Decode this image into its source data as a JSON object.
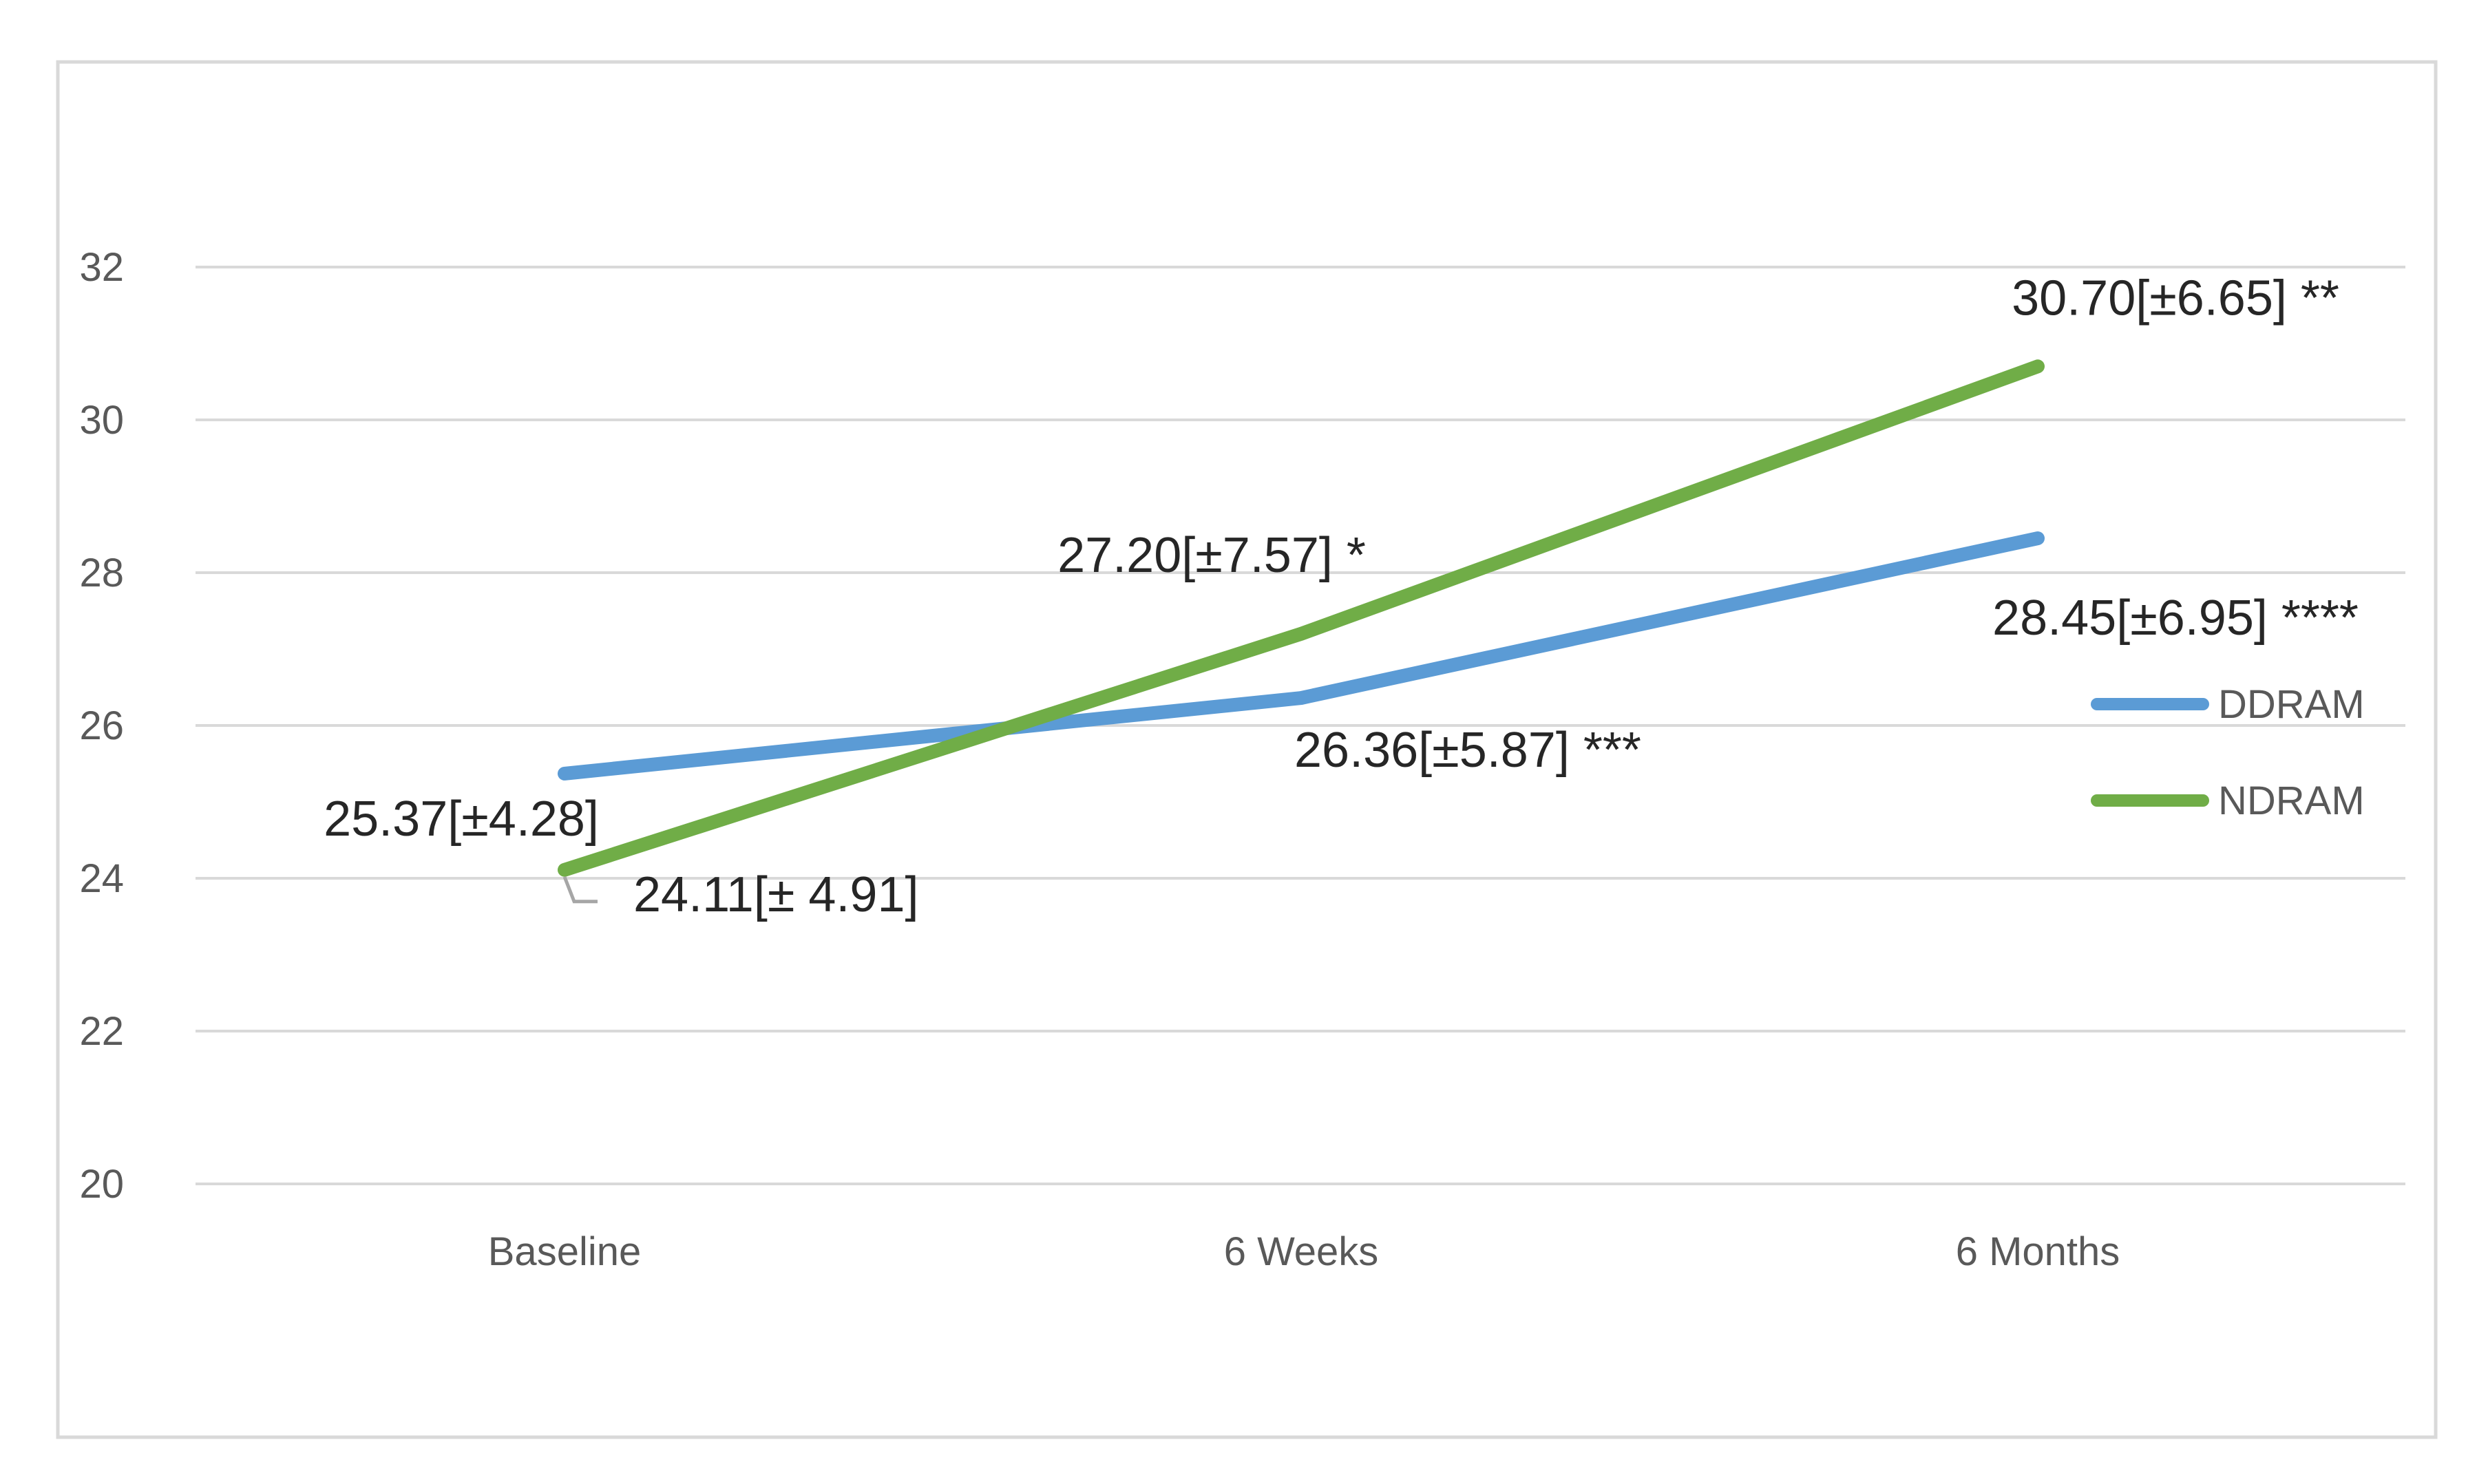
{
  "chart_data": {
    "type": "line",
    "categories": [
      "Baseline",
      "6 Weeks",
      "6 Months"
    ],
    "series": [
      {
        "name": "DDRAM",
        "color": "#5B9BD5",
        "values": [
          25.37,
          26.36,
          28.45
        ],
        "labels": [
          "25.37[±4.28]",
          "26.36[±5.87] ***",
          "28.45[±6.95] ****"
        ]
      },
      {
        "name": "NDRAM",
        "color": "#70AD47",
        "values": [
          24.11,
          27.2,
          30.7
        ],
        "labels": [
          "24.11[± 4.91]",
          "27.20[±7.57] *",
          "30.70[±6.65] **"
        ]
      }
    ],
    "title": "",
    "xlabel": "",
    "ylabel": "",
    "ylim": [
      20,
      32
    ],
    "yticks": [
      "20",
      "22",
      "24",
      "26",
      "28",
      "30",
      "32"
    ],
    "grid": true,
    "legend_position": "right"
  }
}
